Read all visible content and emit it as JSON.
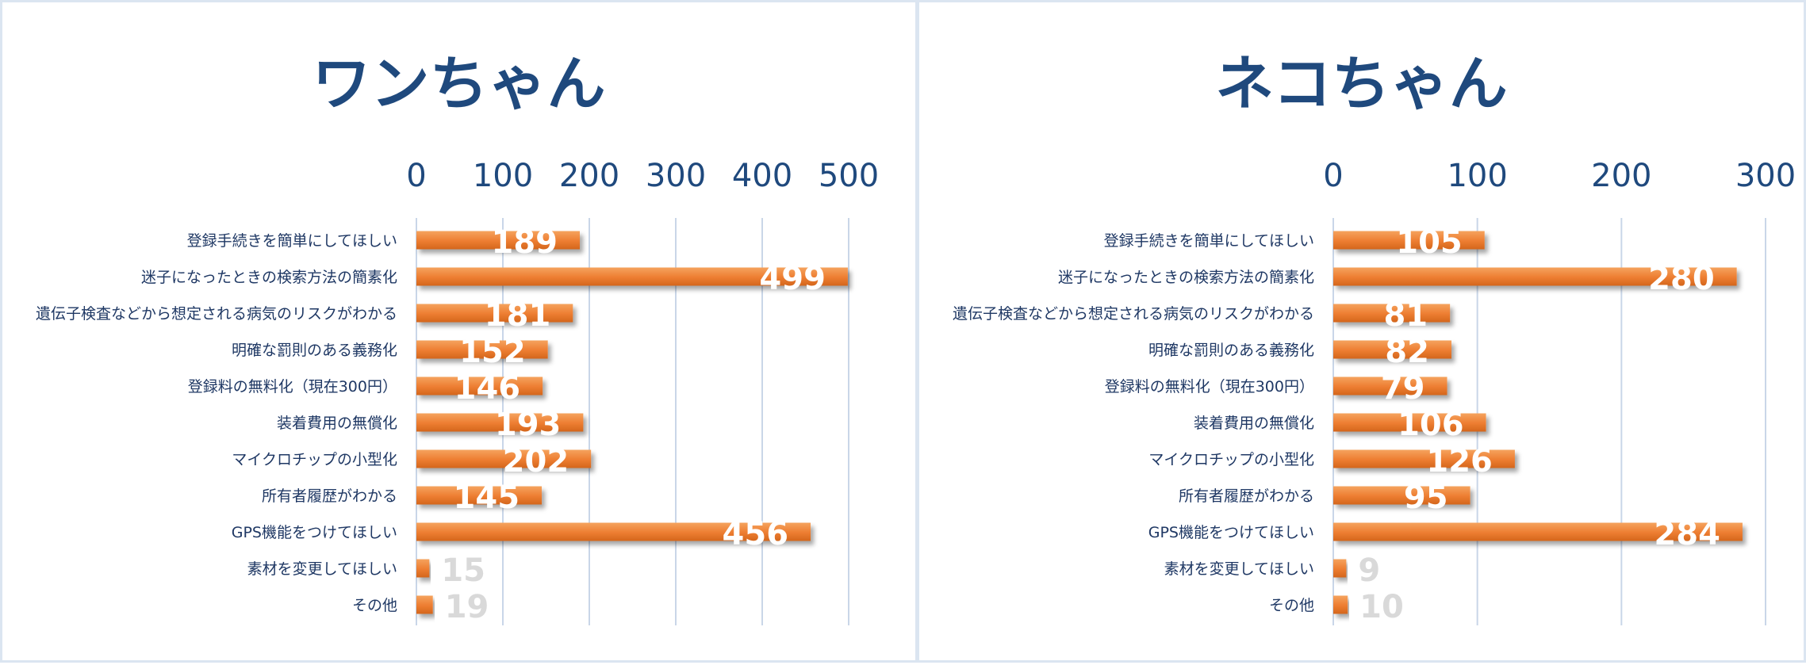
{
  "colors": {
    "bar": "#ed7d31",
    "bar_highlight": "#f5a35e",
    "title": "#1f497d",
    "gridline": "#c9d6e8",
    "panel_border": "#dbe5f1",
    "label_inside": "#ffffff",
    "label_outside": "#d9d9d9"
  },
  "chart_data": [
    {
      "type": "bar",
      "orientation": "horizontal",
      "title": "ワンちゃん",
      "xlim": [
        0,
        500
      ],
      "x_ticks": [
        "0",
        "100",
        "200",
        "300",
        "400",
        "500"
      ],
      "grid": true,
      "categories": [
        "登録手続きを簡単にしてほしい",
        "迷子になったときの検索方法の簡素化",
        "遺伝子検査などから想定される病気のリスクがわかる",
        "明確な罰則のある義務化",
        "登録料の無料化（現在300円）",
        "装着費用の無償化",
        "マイクロチップの小型化",
        "所有者履歴がわかる",
        "GPS機能をつけてほしい",
        "素材を変更してほしい",
        "その他"
      ],
      "values": [
        189,
        499,
        181,
        152,
        146,
        193,
        202,
        145,
        456,
        15,
        19
      ]
    },
    {
      "type": "bar",
      "orientation": "horizontal",
      "title": "ネコちゃん",
      "xlim": [
        0,
        300
      ],
      "x_ticks": [
        "0",
        "100",
        "200",
        "300"
      ],
      "grid": true,
      "categories": [
        "登録手続きを簡単にしてほしい",
        "迷子になったときの検索方法の簡素化",
        "遺伝子検査などから想定される病気のリスクがわかる",
        "明確な罰則のある義務化",
        "登録料の無料化（現在300円）",
        "装着費用の無償化",
        "マイクロチップの小型化",
        "所有者履歴がわかる",
        "GPS機能をつけてほしい",
        "素材を変更してほしい",
        "その他"
      ],
      "values": [
        105,
        280,
        81,
        82,
        79,
        106,
        126,
        95,
        284,
        9,
        10
      ]
    }
  ]
}
